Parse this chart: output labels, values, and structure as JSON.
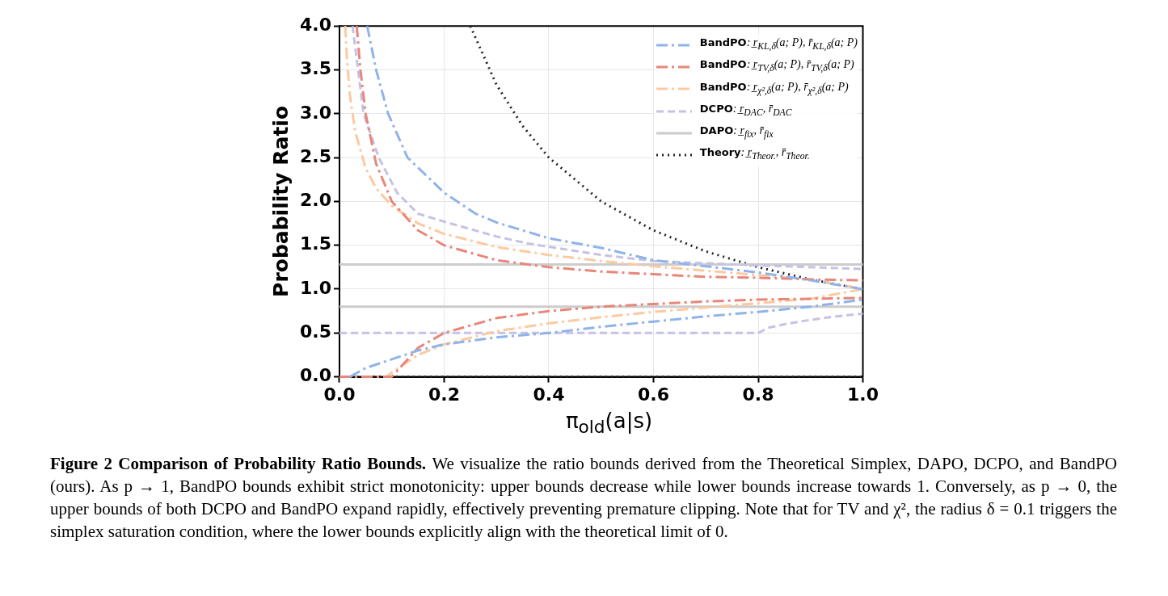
{
  "chart_data": {
    "type": "line",
    "xlabel": "π$_{old}$(a|s)",
    "ylabel": "Probability Ratio",
    "xlim": [
      0,
      1
    ],
    "ylim": [
      0,
      4
    ],
    "xticks": [
      {
        "value": 0,
        "label": "0.0"
      },
      0.2,
      0.4,
      0.6,
      0.8,
      {
        "value": 1,
        "label": "1.0"
      }
    ],
    "yticks": [
      {
        "value": 0,
        "label": "0.0"
      },
      0.5,
      {
        "value": 1,
        "label": "1.0"
      },
      1.5,
      {
        "value": 2,
        "label": "2.0"
      },
      2.5,
      {
        "value": 3,
        "label": "3.0"
      },
      3.5,
      {
        "value": 4,
        "label": "4.0"
      }
    ],
    "grid": true,
    "legend": "top right",
    "marker": "none",
    "series": [
      {
        "name": "BandPO: r̲$_{KL,δ}$(a; P), r̄$_{KL,δ}$(a; P)",
        "color": "#8fb3ea",
        "line_style": "dashdot",
        "x": [
          0.053,
          0.07,
          0.093,
          0.13,
          0.2,
          0.26,
          0.3,
          0.4,
          0.5,
          0.6,
          0.7,
          0.8,
          0.9,
          1.0
        ],
        "values": [
          4.0,
          3.5,
          3.0,
          2.5,
          2.1,
          1.86,
          1.76,
          1.58,
          1.47,
          1.33,
          1.26,
          1.19,
          1.1,
          1.0
        ]
      },
      {
        "color": "#8fb3ea",
        "line_style": "dashdot",
        "x": [
          0.02,
          0.05,
          0.1,
          0.15,
          0.2,
          0.3,
          0.4,
          0.5,
          0.6,
          0.7,
          0.8,
          0.9,
          1.0
        ],
        "values": [
          0,
          0.1,
          0.2,
          0.3,
          0.37,
          0.45,
          0.5,
          0.57,
          0.63,
          0.69,
          0.74,
          0.8,
          0.88
        ]
      },
      {
        "name": "BandPO: r̲$_{TV,δ}$(a; P), r̄$_{TV,δ}$(a; P)",
        "color": "#e8867a",
        "line_style": "dashdot",
        "x": [
          0.033,
          0.04,
          0.05,
          0.07,
          0.1,
          0.15,
          0.2,
          0.3,
          0.4,
          0.5,
          0.6,
          0.7,
          0.8,
          0.9,
          1.0
        ],
        "values": [
          4.0,
          3.5,
          3.0,
          2.43,
          2.0,
          1.67,
          1.5,
          1.33,
          1.25,
          1.2,
          1.17,
          1.14,
          1.13,
          1.11,
          1.1
        ]
      },
      {
        "color": "#e8867a",
        "line_style": "dashdot",
        "x": [
          0,
          0.1,
          0.15,
          0.2,
          0.3,
          0.4,
          0.5,
          0.6,
          0.7,
          0.8,
          0.9,
          1.0
        ],
        "values": [
          0,
          0,
          0.33,
          0.5,
          0.67,
          0.75,
          0.8,
          0.83,
          0.86,
          0.88,
          0.89,
          0.9
        ]
      },
      {
        "name": "BandPO: r̲$_{χ²,δ}$(a; P), r̄$_{χ²,δ}$(a; P)",
        "color": "#fdc9a1",
        "line_style": "dashdot",
        "x": [
          0.011,
          0.015,
          0.02,
          0.03,
          0.05,
          0.07,
          0.1,
          0.15,
          0.2,
          0.3,
          0.4,
          0.5,
          0.6,
          0.7,
          0.8,
          0.9,
          1.0
        ],
        "values": [
          4.0,
          3.56,
          3.21,
          2.8,
          2.38,
          2.15,
          1.95,
          1.75,
          1.63,
          1.48,
          1.39,
          1.32,
          1.26,
          1.21,
          1.16,
          1.11,
          1.0
        ]
      },
      {
        "color": "#fdc9a1",
        "line_style": "dashdot",
        "x": [
          0,
          0.09,
          0.1,
          0.15,
          0.2,
          0.3,
          0.4,
          0.5,
          0.6,
          0.7,
          0.8,
          0.9,
          1.0
        ],
        "values": [
          0,
          0,
          0.05,
          0.25,
          0.37,
          0.52,
          0.61,
          0.68,
          0.74,
          0.79,
          0.84,
          0.89,
          1.0
        ]
      },
      {
        "name": "DCPO: r̲$_{DAC}$, r̄$_{DAC}$",
        "color": "#c5c2e4",
        "line_style": "dashed",
        "x": [
          0.025,
          0.046,
          0.075,
          0.11,
          0.15,
          0.2,
          0.3,
          0.36,
          0.5,
          0.6,
          0.8,
          1.0
        ],
        "values": [
          4.0,
          3.0,
          2.5,
          2.1,
          1.86,
          1.77,
          1.6,
          1.52,
          1.39,
          1.32,
          1.27,
          1.23
        ]
      },
      {
        "color": "#c5c2e4",
        "line_style": "dashed",
        "x": [
          0,
          0.8,
          0.82,
          0.85,
          0.9,
          0.95,
          1.0
        ],
        "values": [
          0.5,
          0.5,
          0.56,
          0.6,
          0.65,
          0.69,
          0.72
        ]
      },
      {
        "name": "DAPO: r̲$_{fix}$, r̄$_{fix}$",
        "color": "#cccccc",
        "line_style": "solid",
        "x": [
          0,
          1
        ],
        "values": [
          1.28,
          1.28
        ]
      },
      {
        "color": "#cccccc",
        "line_style": "solid",
        "x": [
          0,
          1
        ],
        "values": [
          0.8,
          0.8
        ]
      },
      {
        "name": "Theory: r̲$_{Theor.}$, r̄$_{Theor.}$",
        "color": "#222222",
        "line_style": "dotted",
        "x": [
          0.25,
          0.3,
          0.35,
          0.4,
          0.5,
          0.6,
          0.7,
          0.8,
          0.9,
          1.0
        ],
        "values": [
          4.0,
          3.33,
          2.86,
          2.5,
          2.0,
          1.67,
          1.43,
          1.25,
          1.11,
          1.0
        ]
      },
      {
        "color": "#222222",
        "line_style": "dotted",
        "x": [
          0,
          1
        ],
        "values": [
          0,
          0
        ]
      }
    ],
    "annotations": [
      "Figure 2 Comparison of Probability Ratio Bounds.",
      "We visualize the ratio bounds derived from the Theoretical Simplex, DAPO, DCPO, and BandPO (ours). As p → 1, BandPO bounds exhibit strict monotonicity: upper bounds decrease while lower bounds increase towards 1. Conversely, as p → 0, the upper bounds of both DCPO and BandPO expand rapidly, effectively preventing premature clipping. Note that for TV and χ², the radius δ = 0.1 triggers the simplex saturation condition, where the lower bounds explicitly align with the theoretical limit of 0."
    ]
  }
}
